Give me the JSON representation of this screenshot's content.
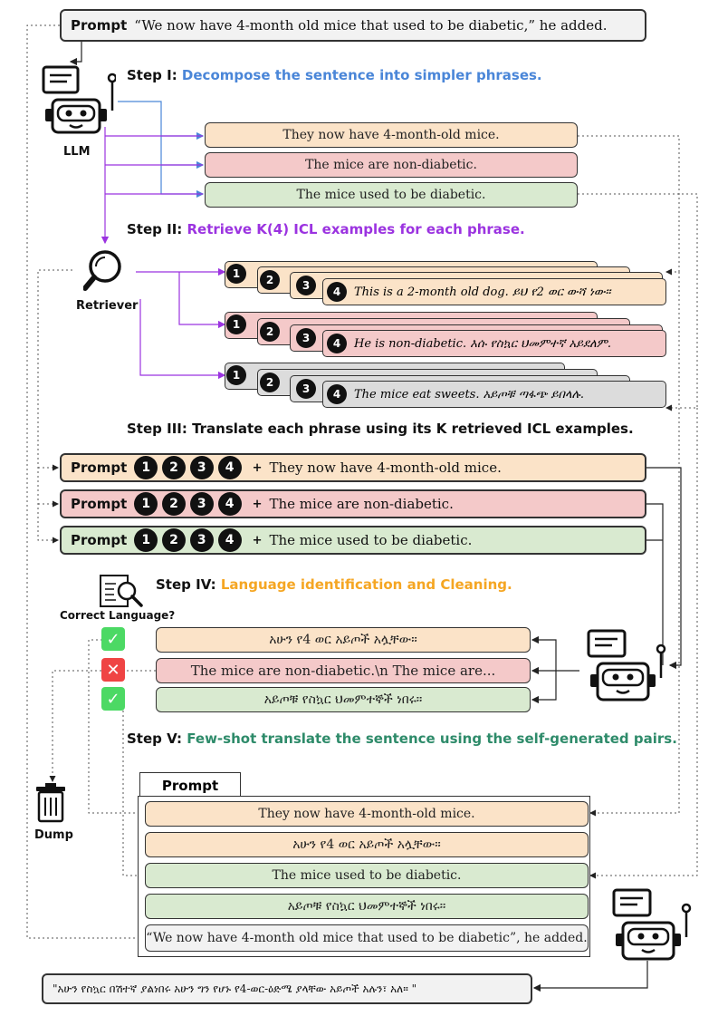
{
  "top_prompt": {
    "label": "Prompt",
    "text": "“We now have 4-month old mice that used to be diabetic,” he added."
  },
  "llm_label": "LLM",
  "retriever_label": "Retriever",
  "dump_label": "Dump",
  "correct_language_label": "Correct Language?",
  "steps": {
    "s1_prefix": "Step I: ",
    "s1_text": "Decompose the sentence into simpler phrases.",
    "s2_prefix": "Step II: ",
    "s2_text": "Retrieve K(4) ICL examples for each phrase.",
    "s3_text": "Step III: Translate each phrase using its K retrieved ICL examples.",
    "s4_prefix": "Step IV: ",
    "s4_text": "Language identification and Cleaning.",
    "s5_prefix": "Step V: ",
    "s5_text": "Few-shot translate the sentence using the self-generated pairs."
  },
  "phrases": [
    "They now have 4-month-old mice.",
    "The mice are non-diabetic.",
    "The mice used to be diabetic."
  ],
  "icl": {
    "numbers": [
      "1",
      "2",
      "3",
      "4"
    ],
    "examples": [
      "This is a 2-month old dog. ይህ የ2 ወር ውሻ ነው።",
      "He is non-diabetic. እሱ የስኳር ህመምተኛ አይደለም.",
      "The mice eat sweets. አይጦቹ ጣፋጭ ይበላሉ."
    ]
  },
  "step3_rows": {
    "prompt_label": "Prompt",
    "plus": "+",
    "texts": [
      "They now have 4-month-old mice.",
      "The mice are non-diabetic.",
      "The mice used to be diabetic."
    ]
  },
  "step4_outputs": [
    "አሁን የ4 ወር አይጦች አሏቸው።",
    "The mice are non-diabetic.\\n The mice are...",
    "አይጦቹ የስኳር ህመምተኞች ነበሩ።"
  ],
  "step4_checks": [
    "✓",
    "✕",
    "✓"
  ],
  "step5": {
    "prompt_label": "Prompt",
    "rows": [
      "They now have 4-month-old mice.",
      "አሁን የ4 ወር አይጦች አሏቸው።",
      "The mice used to be diabetic.",
      "አይጦቹ የስኳር ህመምተኞች ነበሩ።",
      "“We now have 4-month old mice that used to be diabetic”, he added."
    ]
  },
  "final_output": "\"አሁን የስኳር በሽተኛ ያልነበሩ አሁን ግን የሆኑ የ4-ወር-ዕድሜ ያላቸው አይጦች አሉን፣ አለ። \"",
  "colors": {
    "orange": "#fbe3c8",
    "pink": "#f4c9c9",
    "green": "#d9ead0",
    "gray": "#dcdcdc",
    "check_green": "#4cd964",
    "cross_red": "#ef4444",
    "blue": "#4a86d8",
    "purple": "#9b33e0"
  }
}
